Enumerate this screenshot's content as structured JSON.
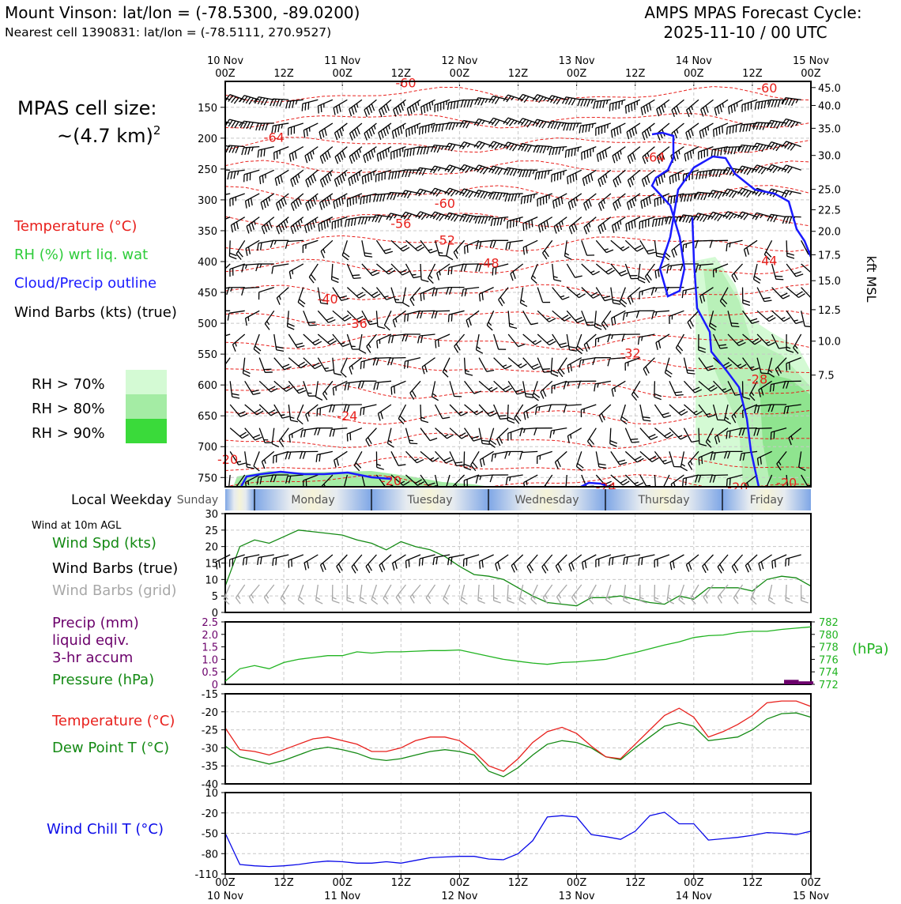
{
  "header": {
    "title": "Mount Vinson: lat/lon = (-78.5300, -89.0200)",
    "subtitle": "Nearest cell 1390831: lat/lon = (-78.5111, 270.9527)",
    "cycle_line1": "AMPS MPAS Forecast Cycle:",
    "cycle_line2": "2025-11-10 / 00 UTC"
  },
  "legend": {
    "cell_size_line1": "MPAS cell size:",
    "cell_size_line2": "~(4.7 km)",
    "cell_size_sup": "2",
    "temperature": "Temperature (°C)",
    "rh": "RH (%) wrt liq. wat",
    "cloud": "Cloud/Precip outline",
    "barbs": "Wind Barbs (kts) (true)",
    "rh70": "RH > 70%",
    "rh80": "RH > 80%",
    "rh90": "RH > 90%"
  },
  "colors": {
    "temp": "#e8201c",
    "rh_label": "#2ecc3a",
    "cloud": "#1a1aff",
    "rh70": "#d4fad4",
    "rh80": "#a4eca4",
    "rh90": "#3ada3a",
    "wind_spd": "#148a14",
    "pressure": "#21b421",
    "precip": "#6b006b",
    "dew": "#148a14",
    "chill": "#0a0ae8",
    "grid_barb": "#a8a8a8"
  },
  "time_axis": {
    "top_dates": [
      "10 Nov",
      "11 Nov",
      "12 Nov",
      "13 Nov",
      "14 Nov",
      "15 Nov"
    ],
    "top_hours": [
      "00Z",
      "12Z",
      "00Z",
      "12Z",
      "00Z",
      "12Z",
      "00Z",
      "12Z",
      "00Z",
      "12Z",
      "00Z"
    ],
    "bottom_hours": [
      "00Z",
      "12Z",
      "00Z",
      "12Z",
      "00Z",
      "12Z",
      "00Z",
      "12Z",
      "00Z",
      "12Z",
      "00Z"
    ],
    "bottom_dates": [
      "10 Nov",
      "11 Nov",
      "12 Nov",
      "13 Nov",
      "14 Nov",
      "15 Nov"
    ]
  },
  "weekday": {
    "label": "Local Weekday",
    "days": [
      "Sunday",
      "Monday",
      "Tuesday",
      "Wednesday",
      "Thursday",
      "Friday"
    ]
  },
  "chart_data": [
    {
      "type": "heatmap",
      "name": "vertical profile",
      "pressure_ticks": [
        "150",
        "200",
        "250",
        "300",
        "350",
        "400",
        "450",
        "500",
        "550",
        "600",
        "650",
        "700",
        "750"
      ],
      "pressure_values": [
        150,
        200,
        250,
        300,
        350,
        400,
        450,
        500,
        550,
        600,
        650,
        700,
        750
      ],
      "ylim": [
        108,
        765
      ],
      "right_axis_label": "kft MSL",
      "kft_ticks": [
        "45.0",
        "40.0",
        "35.0",
        "30.0",
        "25.0",
        "22.5",
        "20.0",
        "17.5",
        "15.0",
        "12.5",
        "10.0",
        "7.5"
      ],
      "kft_pressure": [
        118,
        147,
        184,
        228,
        283,
        316,
        351,
        389,
        431,
        478,
        529,
        584
      ],
      "xlim_hours": [
        0,
        120
      ],
      "temp_contour_labels": [
        {
          "text": "-60",
          "h": 37,
          "p": 110
        },
        {
          "text": "-60",
          "h": 111,
          "p": 118
        },
        {
          "text": "-64",
          "h": 10,
          "p": 198
        },
        {
          "text": "-64",
          "h": 88,
          "p": 230
        },
        {
          "text": "-60",
          "h": 45,
          "p": 305
        },
        {
          "text": "-56",
          "h": 36,
          "p": 338
        },
        {
          "text": "-52",
          "h": 45,
          "p": 365
        },
        {
          "text": "-48",
          "h": 54,
          "p": 402
        },
        {
          "text": "-44",
          "h": 111,
          "p": 398
        },
        {
          "text": "-40",
          "h": 21,
          "p": 460
        },
        {
          "text": "-36",
          "h": 27,
          "p": 500
        },
        {
          "text": "-32",
          "h": 83,
          "p": 548
        },
        {
          "text": "-28",
          "h": 109,
          "p": 590
        },
        {
          "text": "-24",
          "h": 25,
          "p": 650
        },
        {
          "text": "-20",
          "h": 0.5,
          "p": 720
        },
        {
          "text": "-20",
          "h": 34,
          "p": 755
        },
        {
          "text": "-24",
          "h": 78,
          "p": 765
        },
        {
          "text": "-20",
          "h": 105,
          "p": 765
        },
        {
          "text": "-20",
          "h": 115,
          "p": 758
        }
      ]
    },
    {
      "type": "line",
      "name": "wind 10m",
      "title": "Wind at 10m AGL",
      "labels": [
        "Wind Spd (kts)",
        "Wind Barbs (true)",
        "Wind Barbs (grid)"
      ],
      "ylim": [
        0,
        30
      ],
      "y_ticks": [
        "0",
        "5",
        "10",
        "15",
        "20",
        "25",
        "30"
      ],
      "x_hours": [
        0,
        3,
        6,
        9,
        12,
        15,
        18,
        21,
        24,
        27,
        30,
        33,
        36,
        39,
        42,
        45,
        48,
        51,
        54,
        57,
        60,
        63,
        66,
        69,
        72,
        75,
        78,
        81,
        84,
        87,
        90,
        93,
        96,
        99,
        102,
        105,
        108,
        111,
        114,
        117,
        120
      ],
      "wind_speed": [
        8,
        20,
        22,
        21,
        23,
        25,
        24.5,
        24,
        23.5,
        22,
        21,
        19,
        21.5,
        20,
        19,
        17,
        14,
        11.5,
        11,
        10,
        7.5,
        5,
        3,
        2.5,
        2,
        4.5,
        4.5,
        5,
        4,
        3,
        2.5,
        5,
        4,
        7.5,
        7.5,
        7.5,
        6.5,
        10,
        11,
        10.5,
        8
      ]
    },
    {
      "type": "line",
      "name": "precip pressure",
      "labels": [
        "Precip (mm)",
        "liquid eqiv.",
        "3-hr accum",
        "Pressure (hPa)"
      ],
      "precip_ylim": [
        0,
        2.5
      ],
      "precip_ticks": [
        "0",
        "0.5",
        "1.0",
        "1.5",
        "2.0",
        "2.5"
      ],
      "pressure_ylim": [
        772,
        782
      ],
      "pressure_ticks": [
        "772",
        "774",
        "776",
        "778",
        "780",
        "782"
      ],
      "pressure_unit": "(hPa)",
      "x_hours": [
        0,
        3,
        6,
        9,
        12,
        15,
        18,
        21,
        24,
        27,
        30,
        33,
        36,
        39,
        42,
        45,
        48,
        51,
        54,
        57,
        60,
        63,
        66,
        69,
        72,
        75,
        78,
        81,
        84,
        87,
        90,
        93,
        96,
        99,
        102,
        105,
        108,
        111,
        114,
        117,
        120
      ],
      "pressure": [
        772.5,
        774.5,
        775,
        774.5,
        775.5,
        776,
        776.3,
        776.6,
        776.6,
        777.2,
        777,
        777.2,
        777.2,
        777.3,
        777.4,
        777.4,
        777.5,
        777,
        776.5,
        776,
        775.7,
        775.4,
        775.2,
        775.5,
        775.6,
        775.8,
        776,
        776.6,
        777.1,
        777.7,
        778.3,
        778.8,
        779.5,
        779.8,
        779.9,
        780.3,
        780.5,
        780.5,
        780.8,
        781,
        781.2
      ],
      "precip_bars": [
        {
          "h": 116,
          "mm": 0.18
        },
        {
          "h": 119,
          "mm": 0.12
        }
      ]
    },
    {
      "type": "line",
      "name": "temperature dewpoint",
      "labels": [
        "Temperature (°C)",
        "Dew Point T (°C)"
      ],
      "ylim": [
        -40,
        -15
      ],
      "y_ticks": [
        "-15",
        "-20",
        "-25",
        "-30",
        "-35",
        "-40"
      ],
      "x_hours": [
        0,
        3,
        6,
        9,
        12,
        15,
        18,
        21,
        24,
        27,
        30,
        33,
        36,
        39,
        42,
        45,
        48,
        51,
        54,
        57,
        60,
        63,
        66,
        69,
        72,
        75,
        78,
        81,
        84,
        87,
        90,
        93,
        96,
        99,
        102,
        105,
        108,
        111,
        114,
        117,
        120
      ],
      "temperature": [
        -24.5,
        -30.5,
        -31,
        -32,
        -30.5,
        -29,
        -27.5,
        -27,
        -28,
        -29,
        -31,
        -31,
        -30,
        -28,
        -27,
        -27,
        -28,
        -31,
        -35,
        -36.5,
        -33,
        -28.5,
        -25.5,
        -24.3,
        -26,
        -29.5,
        -32.5,
        -33,
        -29,
        -25,
        -21,
        -19,
        -21.5,
        -27,
        -25.5,
        -23.5,
        -21,
        -17.5,
        -17,
        -17,
        -18.5
      ],
      "dew_point": [
        -29.5,
        -32.5,
        -33.5,
        -34.5,
        -33.5,
        -32,
        -30.5,
        -29.8,
        -30.5,
        -31.5,
        -33,
        -33.5,
        -33,
        -32,
        -31,
        -30.5,
        -31,
        -32,
        -36.5,
        -38,
        -35.5,
        -32,
        -29,
        -28,
        -28.5,
        -30,
        -32.5,
        -33.3,
        -30,
        -27,
        -24,
        -23,
        -24,
        -28,
        -27.5,
        -27,
        -25,
        -22,
        -20.5,
        -20.3,
        -21.5
      ]
    },
    {
      "type": "line",
      "name": "wind chill",
      "labels": [
        "Wind Chill T (°C)"
      ],
      "ylim": [
        -110,
        10
      ],
      "y_ticks": [
        "10",
        "-20",
        "-50",
        "-80",
        "-110"
      ],
      "x_hours": [
        0,
        3,
        6,
        9,
        12,
        15,
        18,
        21,
        24,
        27,
        30,
        33,
        36,
        39,
        42,
        45,
        48,
        51,
        54,
        57,
        60,
        63,
        66,
        69,
        72,
        75,
        78,
        81,
        84,
        87,
        90,
        93,
        96,
        99,
        102,
        105,
        108,
        111,
        114,
        117,
        120
      ],
      "wind_chill": [
        -50,
        -96,
        -98,
        -99,
        -98,
        -96,
        -93,
        -91,
        -92,
        -94,
        -94,
        -92,
        -94,
        -90,
        -86,
        -85,
        -84,
        -84,
        -88,
        -89,
        -80,
        -61,
        -26,
        -24,
        -26,
        -52,
        -55,
        -59,
        -47,
        -24,
        -19,
        -36,
        -36,
        -60,
        -58,
        -56,
        -53,
        -49,
        -50,
        -52,
        -47
      ]
    }
  ]
}
